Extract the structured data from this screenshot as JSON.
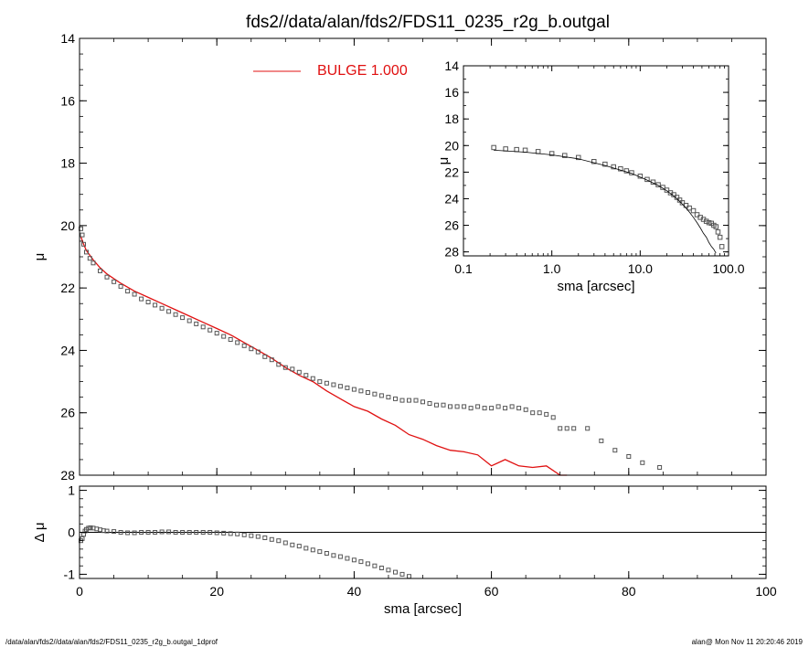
{
  "title": "fds2//data/alan/fds2/FDS11_0235_r2g_b.outgal",
  "footer": {
    "left": "/data/alan/fds2//data/alan/fds2/FDS11_0235_r2g_b.outgal_1dprof",
    "right": "alan@  Mon Nov 11 20:20:46 2019"
  },
  "colors": {
    "model": "#e01010",
    "data": "#555555",
    "axes": "#000000"
  },
  "chart_data": [
    {
      "id": "main",
      "type": "scatter",
      "xlabel": "",
      "ylabel": "μ",
      "xlim": [
        0,
        100
      ],
      "ylim": [
        28,
        14
      ],
      "yticks": [
        14,
        16,
        18,
        20,
        22,
        24,
        26,
        28
      ],
      "xticks": [
        0,
        20,
        40,
        60,
        80,
        100
      ],
      "legend": {
        "label": "BULGE  1.000",
        "placement": "top-center"
      },
      "series": [
        {
          "name": "BULGE  1.000",
          "kind": "line",
          "x": [
            0.2,
            0.5,
            1,
            2,
            3,
            4,
            6,
            8,
            10,
            12,
            14,
            16,
            18,
            20,
            22,
            24,
            26,
            28,
            30,
            32,
            34,
            36,
            38,
            40,
            42,
            44,
            46,
            48,
            50,
            52,
            54,
            56,
            58,
            60,
            62,
            64,
            66,
            68,
            70,
            71
          ],
          "y": [
            20.35,
            20.55,
            20.8,
            21.1,
            21.35,
            21.55,
            21.85,
            22.1,
            22.3,
            22.5,
            22.7,
            22.9,
            23.1,
            23.3,
            23.5,
            23.75,
            24.0,
            24.25,
            24.55,
            24.8,
            25.0,
            25.3,
            25.55,
            25.8,
            25.95,
            26.2,
            26.4,
            26.7,
            26.85,
            27.05,
            27.2,
            27.25,
            27.35,
            27.7,
            27.5,
            27.7,
            27.75,
            27.7,
            28.0,
            28.1
          ]
        },
        {
          "name": "",
          "kind": "points",
          "x": [
            0.2,
            0.4,
            0.6,
            1,
            1.5,
            2,
            3,
            4,
            5,
            6,
            7,
            8,
            9,
            10,
            11,
            12,
            13,
            14,
            15,
            16,
            17,
            18,
            19,
            20,
            21,
            22,
            23,
            24,
            25,
            26,
            27,
            28,
            29,
            30,
            31,
            32,
            33,
            34,
            35,
            36,
            37,
            38,
            39,
            40,
            41,
            42,
            43,
            44,
            45,
            46,
            47,
            48,
            49,
            50,
            51,
            52,
            53,
            54,
            55,
            56,
            57,
            58,
            59,
            60,
            61,
            62,
            63,
            64,
            65,
            66,
            67,
            68,
            69,
            70,
            71,
            72,
            74,
            76,
            78,
            80,
            82,
            84.5
          ],
          "y": [
            20.1,
            20.3,
            20.6,
            20.85,
            21.05,
            21.2,
            21.45,
            21.65,
            21.8,
            21.95,
            22.1,
            22.2,
            22.35,
            22.45,
            22.55,
            22.65,
            22.75,
            22.85,
            22.95,
            23.05,
            23.15,
            23.25,
            23.35,
            23.45,
            23.55,
            23.65,
            23.75,
            23.85,
            23.95,
            24.05,
            24.2,
            24.3,
            24.45,
            24.55,
            24.6,
            24.7,
            24.8,
            24.9,
            25.0,
            25.05,
            25.1,
            25.15,
            25.2,
            25.25,
            25.3,
            25.35,
            25.4,
            25.45,
            25.5,
            25.55,
            25.6,
            25.6,
            25.6,
            25.65,
            25.7,
            25.75,
            25.75,
            25.8,
            25.8,
            25.8,
            25.85,
            25.8,
            25.85,
            25.85,
            25.8,
            25.85,
            25.8,
            25.85,
            25.9,
            26.0,
            26.0,
            26.05,
            26.15,
            26.5,
            26.5,
            26.5,
            26.5,
            26.9,
            27.2,
            27.4,
            27.6,
            27.75
          ]
        }
      ]
    },
    {
      "id": "residual",
      "type": "scatter",
      "xlabel": "sma [arcsec]",
      "ylabel": "Δ μ",
      "xlim": [
        0,
        100
      ],
      "ylim": [
        -1.1,
        1.1
      ],
      "yticks": [
        -1,
        0,
        1
      ],
      "xticks": [
        0,
        20,
        40,
        60,
        80,
        100
      ],
      "series": [
        {
          "name": "",
          "kind": "points",
          "x": [
            0.2,
            0.4,
            0.6,
            0.8,
            1,
            1.3,
            1.6,
            2,
            2.5,
            3,
            3.5,
            4,
            5,
            6,
            7,
            8,
            9,
            10,
            11,
            12,
            13,
            14,
            15,
            16,
            17,
            18,
            19,
            20,
            21,
            22,
            23,
            24,
            25,
            26,
            27,
            28,
            29,
            30,
            31,
            32,
            33,
            34,
            35,
            36,
            37,
            38,
            39,
            40,
            41,
            42,
            43,
            44,
            45,
            46,
            47,
            48
          ],
          "y": [
            -0.2,
            -0.15,
            -0.05,
            0.03,
            0.07,
            0.1,
            0.11,
            0.1,
            0.08,
            0.06,
            0.04,
            0.03,
            0.02,
            0.0,
            -0.01,
            -0.01,
            0.0,
            0.0,
            0.0,
            0.01,
            0.01,
            0.0,
            0.0,
            0.0,
            0.0,
            0.0,
            0.0,
            -0.01,
            -0.02,
            -0.03,
            -0.04,
            -0.06,
            -0.08,
            -0.1,
            -0.13,
            -0.17,
            -0.2,
            -0.25,
            -0.3,
            -0.33,
            -0.38,
            -0.42,
            -0.46,
            -0.5,
            -0.55,
            -0.58,
            -0.62,
            -0.66,
            -0.7,
            -0.75,
            -0.8,
            -0.85,
            -0.9,
            -0.95,
            -1.0,
            -1.05
          ]
        }
      ]
    },
    {
      "id": "inset",
      "type": "scatter",
      "xscale": "log",
      "xlabel": "sma [arcsec]",
      "ylabel": "μ",
      "xlim": [
        0.1,
        100
      ],
      "ylim": [
        28.3,
        14
      ],
      "yticks": [
        14,
        16,
        18,
        20,
        22,
        24,
        26,
        28
      ],
      "xticks": [
        0.1,
        1,
        10,
        100
      ],
      "xticklabels": [
        "0.1",
        "1.0",
        "10.0",
        "100.0"
      ],
      "series": [
        {
          "name": "",
          "kind": "points",
          "x": [
            0.22,
            0.3,
            0.4,
            0.5,
            0.7,
            1.0,
            1.4,
            2.0,
            3.0,
            4.0,
            5.0,
            6.0,
            7.0,
            8.0,
            10,
            12,
            14,
            16,
            18,
            20,
            22,
            24,
            26,
            28,
            30,
            33,
            36,
            40,
            44,
            48,
            52,
            56,
            60,
            64,
            68,
            72,
            76,
            80,
            84
          ],
          "y": [
            20.15,
            20.25,
            20.3,
            20.35,
            20.45,
            20.6,
            20.75,
            20.9,
            21.2,
            21.4,
            21.6,
            21.75,
            21.9,
            22.05,
            22.3,
            22.55,
            22.75,
            22.95,
            23.15,
            23.35,
            23.55,
            23.7,
            23.9,
            24.1,
            24.3,
            24.5,
            24.7,
            24.9,
            25.2,
            25.4,
            25.55,
            25.7,
            25.8,
            25.85,
            26.0,
            26.1,
            26.5,
            26.9,
            27.6
          ]
        },
        {
          "name": "",
          "kind": "line",
          "x": [
            0.22,
            0.3,
            0.5,
            1.0,
            2.0,
            4.0,
            8.0,
            12,
            16,
            20,
            24,
            28,
            32,
            36,
            40,
            44,
            48,
            52,
            56,
            60,
            64,
            68,
            72
          ],
          "y": [
            20.35,
            20.4,
            20.5,
            20.7,
            21.0,
            21.5,
            22.1,
            22.6,
            23.0,
            23.4,
            23.8,
            24.2,
            24.6,
            25.0,
            25.4,
            25.8,
            26.2,
            26.6,
            26.9,
            27.3,
            27.6,
            27.8,
            28.1
          ]
        }
      ]
    }
  ]
}
